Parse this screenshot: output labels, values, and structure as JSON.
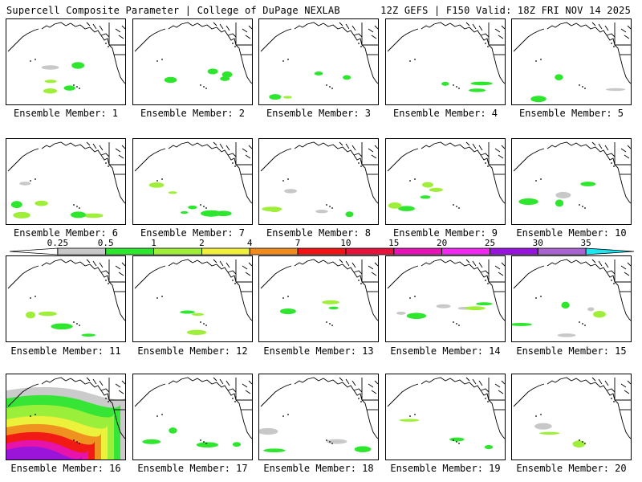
{
  "header": {
    "left": "Supercell Composite Parameter | College of DuPage NEXLAB",
    "right": "12Z GEFS | F150 Valid: 18Z FRI NOV 14 2025"
  },
  "colorbar": {
    "ticks": [
      "0.25",
      "0.5",
      "1",
      "2",
      "4",
      "7",
      "10",
      "15",
      "20",
      "25",
      "30",
      "35"
    ],
    "colors": [
      "#ffffff",
      "#c8c8c8",
      "#2ee62e",
      "#9fef3a",
      "#f0f03c",
      "#f08c1e",
      "#f01414",
      "#e6143c",
      "#e614b4",
      "#f028f0",
      "#9614dc",
      "#aa64d2",
      "#1ee6f0"
    ]
  },
  "panels": [
    {
      "label": "Ensemble Member: 1",
      "severity": "low"
    },
    {
      "label": "Ensemble Member: 2",
      "severity": "low"
    },
    {
      "label": "Ensemble Member: 3",
      "severity": "low"
    },
    {
      "label": "Ensemble Member: 4",
      "severity": "low"
    },
    {
      "label": "Ensemble Member: 5",
      "severity": "low"
    },
    {
      "label": "Ensemble Member: 6",
      "severity": "low"
    },
    {
      "label": "Ensemble Member: 7",
      "severity": "low"
    },
    {
      "label": "Ensemble Member: 8",
      "severity": "low"
    },
    {
      "label": "Ensemble Member: 9",
      "severity": "low"
    },
    {
      "label": "Ensemble Member: 10",
      "severity": "low"
    },
    {
      "label": "Ensemble Member: 11",
      "severity": "low"
    },
    {
      "label": "Ensemble Member: 12",
      "severity": "low"
    },
    {
      "label": "Ensemble Member: 13",
      "severity": "low"
    },
    {
      "label": "Ensemble Member: 14",
      "severity": "low"
    },
    {
      "label": "Ensemble Member: 15",
      "severity": "low"
    },
    {
      "label": "Ensemble Member: 16",
      "severity": "high"
    },
    {
      "label": "Ensemble Member: 17",
      "severity": "low"
    },
    {
      "label": "Ensemble Member: 18",
      "severity": "low"
    },
    {
      "label": "Ensemble Member: 19",
      "severity": "low"
    },
    {
      "label": "Ensemble Member: 20",
      "severity": "low"
    }
  ]
}
